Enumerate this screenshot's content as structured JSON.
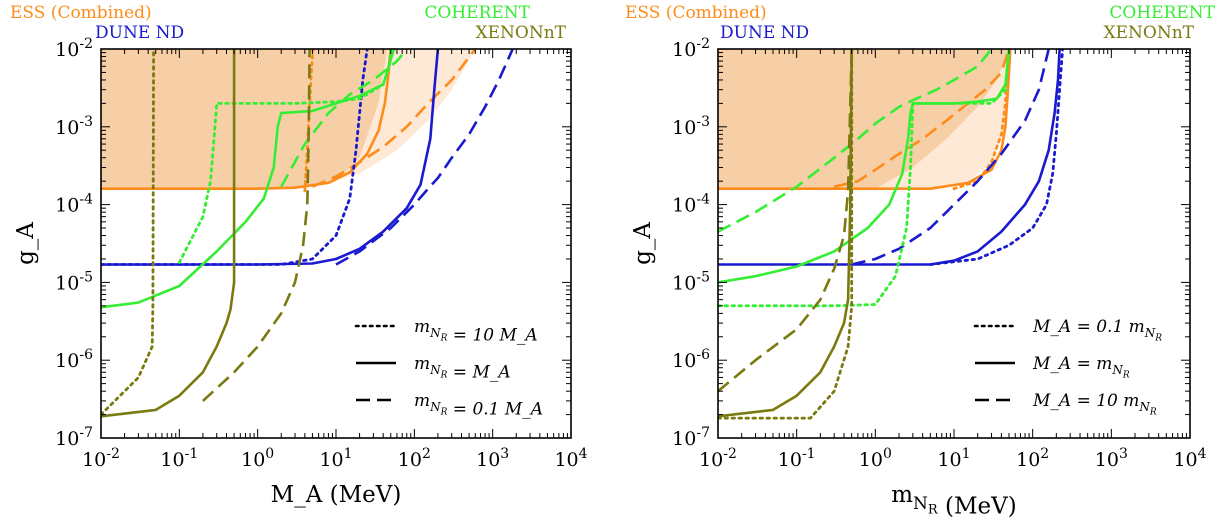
{
  "colors": {
    "ess": "#ff8c1a",
    "ess_fill": "#f7cfa6",
    "ess_fill_light": "#fde9d6",
    "dune": "#1a1ad0",
    "coherent": "#33ee33",
    "xenon": "#7a7a10"
  },
  "chart_data": [
    {
      "type": "line",
      "xscale": "log",
      "yscale": "log",
      "xlim": [
        0.01,
        10000
      ],
      "ylim": [
        1e-07,
        0.01
      ],
      "xlabel": "M_A (MeV)",
      "ylabel": "g_A",
      "x_ticks": [
        "10^{-2}",
        "10^{-1}",
        "10^{0}",
        "10^{1}",
        "10^{2}",
        "10^{3}",
        "10^{4}"
      ],
      "y_ticks": [
        "10^{-7}",
        "10^{-6}",
        "10^{-5}",
        "10^{-4}",
        "10^{-3}",
        "10^{-2}"
      ],
      "experiment_labels": [
        {
          "text": "ESS (Combined)",
          "color_key": "ess"
        },
        {
          "text": "COHERENT",
          "color_key": "coherent"
        },
        {
          "text": "DUNE ND",
          "color_key": "dune"
        },
        {
          "text": "XENONnT",
          "color_key": "xenon"
        }
      ],
      "legend": {
        "position": "lower-right",
        "entries": [
          {
            "style": "dotted",
            "label": "m_{N_R} = 10 M_A"
          },
          {
            "style": "solid",
            "label": "m_{N_R} = M_A"
          },
          {
            "style": "dashed",
            "label": "m_{N_R} = 0.1 M_A"
          }
        ]
      },
      "shaded_regions": [
        {
          "name": "ESS (Combined)",
          "color_key": "ess_fill",
          "points": [
            [
              0.01,
              0.00016
            ],
            [
              1,
              0.00016
            ],
            [
              2,
              0.00016
            ],
            [
              10,
              0.0002
            ],
            [
              20,
              0.0004
            ],
            [
              35,
              0.002
            ],
            [
              45,
              0.01
            ],
            [
              0.01,
              0.01
            ]
          ]
        },
        {
          "name": "ESS (Combined)",
          "color_key": "ess_fill_light",
          "points": [
            [
              45,
              0.01
            ],
            [
              35,
              0.002
            ],
            [
              20,
              0.0004
            ],
            [
              10,
              0.0002
            ],
            [
              4,
              0.00016
            ],
            [
              20,
              0.00025
            ],
            [
              60,
              0.0005
            ],
            [
              150,
              0.0012
            ],
            [
              300,
              0.003
            ],
            [
              600,
              0.01
            ]
          ]
        }
      ],
      "series": [
        {
          "name": "ESS (Combined)",
          "color_key": "ess",
          "style": "solid",
          "x": [
            0.01,
            1,
            3,
            8,
            15,
            25,
            35,
            42,
            45,
            47,
            48,
            50
          ],
          "y": [
            0.00016,
            0.00016,
            0.000165,
            0.00019,
            0.00026,
            0.00045,
            0.0009,
            0.002,
            0.0035,
            0.005,
            0.007,
            0.01
          ]
        },
        {
          "name": "ESS (Combined)",
          "color_key": "ess",
          "style": "dashed",
          "x": [
            5,
            10,
            20,
            40,
            80,
            150,
            300,
            600
          ],
          "y": [
            0.00017,
            0.00023,
            0.00035,
            0.00055,
            0.001,
            0.002,
            0.004,
            0.01
          ]
        },
        {
          "name": "ESS (Combined)",
          "color_key": "ess",
          "style": "dotted",
          "x": [
            4,
            4.3,
            4.6,
            4.9,
            5.1
          ],
          "y": [
            0.00015,
            0.0005,
            0.002,
            0.006,
            0.01
          ]
        },
        {
          "name": "DUNE ND",
          "color_key": "dune",
          "style": "solid",
          "x": [
            0.01,
            1,
            5,
            10,
            20,
            40,
            80,
            120,
            160,
            180,
            200
          ],
          "y": [
            1.7e-05,
            1.7e-05,
            1.75e-05,
            2e-05,
            2.7e-05,
            4.5e-05,
            9e-05,
            0.00018,
            0.0007,
            0.003,
            0.01
          ]
        },
        {
          "name": "DUNE ND",
          "color_key": "dune",
          "style": "dotted",
          "x": [
            0.01,
            2,
            5,
            10,
            15,
            18,
            20,
            22,
            25
          ],
          "y": [
            1.7e-05,
            1.7e-05,
            2e-05,
            4e-05,
            0.00012,
            0.0005,
            0.0015,
            0.004,
            0.01
          ]
        },
        {
          "name": "DUNE ND",
          "color_key": "dune",
          "style": "dashed",
          "x": [
            10,
            20,
            50,
            100,
            150,
            200,
            300,
            500,
            800,
            1200,
            1800
          ],
          "y": [
            1.7e-05,
            2.5e-05,
            5e-05,
            0.0001,
            0.00016,
            0.00022,
            0.0004,
            0.0008,
            0.0018,
            0.004,
            0.01
          ]
        },
        {
          "name": "COHERENT",
          "color_key": "coherent",
          "style": "solid",
          "x": [
            0.01,
            0.03,
            0.1,
            0.3,
            0.7,
            1.2,
            1.6,
            1.8,
            2,
            5,
            10,
            20,
            40,
            55
          ],
          "y": [
            4.8e-06,
            5.5e-06,
            9e-06,
            2.5e-05,
            6e-05,
            0.00012,
            0.0003,
            0.001,
            0.0015,
            0.0016,
            0.002,
            0.0025,
            0.0035,
            0.01
          ]
        },
        {
          "name": "COHERENT",
          "color_key": "coherent",
          "style": "dotted",
          "x": [
            0.1,
            0.2,
            0.25,
            0.28,
            0.3,
            1,
            3,
            10,
            20,
            40,
            48,
            50
          ],
          "y": [
            1.8e-05,
            7e-05,
            0.0002,
            0.0008,
            0.002,
            0.002,
            0.002,
            0.0021,
            0.0023,
            0.0035,
            0.006,
            0.01
          ]
        },
        {
          "name": "COHERENT",
          "color_key": "coherent",
          "style": "dashed",
          "x": [
            2,
            4,
            8,
            15,
            30,
            60,
            80
          ],
          "y": [
            0.00017,
            0.0006,
            0.0015,
            0.0026,
            0.004,
            0.007,
            0.01
          ]
        },
        {
          "name": "XENONnT",
          "color_key": "xenon",
          "style": "solid",
          "x": [
            0.01,
            0.05,
            0.1,
            0.2,
            0.3,
            0.4,
            0.45,
            0.5,
            0.5
          ],
          "y": [
            1.9e-07,
            2.3e-07,
            3.5e-07,
            7e-07,
            1.5e-06,
            3e-06,
            4.5e-06,
            1e-05,
            0.01
          ]
        },
        {
          "name": "XENONnT",
          "color_key": "xenon",
          "style": "dotted",
          "x": [
            0.01,
            0.03,
            0.045,
            0.046,
            0.047
          ],
          "y": [
            2e-07,
            6e-07,
            1.5e-06,
            5e-06,
            0.01
          ]
        },
        {
          "name": "XENONnT",
          "color_key": "xenon",
          "style": "dashed",
          "x": [
            0.2,
            0.5,
            1,
            2,
            3,
            3.8,
            4.3,
            4.5,
            4.6
          ],
          "y": [
            3e-07,
            7e-07,
            1.5e-06,
            4e-06,
            1e-05,
            3e-05,
            0.0001,
            0.001,
            0.01
          ]
        }
      ]
    },
    {
      "type": "line",
      "xscale": "log",
      "yscale": "log",
      "xlim": [
        0.01,
        10000
      ],
      "ylim": [
        1e-07,
        0.01
      ],
      "xlabel": "m_{N_R} (MeV)",
      "ylabel": "g_A",
      "x_ticks": [
        "10^{-2}",
        "10^{-1}",
        "10^{0}",
        "10^{1}",
        "10^{2}",
        "10^{3}",
        "10^{4}"
      ],
      "y_ticks": [
        "10^{-7}",
        "10^{-6}",
        "10^{-5}",
        "10^{-4}",
        "10^{-3}",
        "10^{-2}"
      ],
      "experiment_labels": [
        {
          "text": "ESS (Combined)",
          "color_key": "ess"
        },
        {
          "text": "COHERENT",
          "color_key": "coherent"
        },
        {
          "text": "DUNE ND",
          "color_key": "dune"
        },
        {
          "text": "XENONnT",
          "color_key": "xenon"
        }
      ],
      "legend": {
        "position": "lower-right",
        "entries": [
          {
            "style": "dotted",
            "label": "M_A = 0.1 m_{N_R}"
          },
          {
            "style": "solid",
            "label": "M_A = m_{N_R}"
          },
          {
            "style": "dashed",
            "label": "M_A = 10 m_{N_R}"
          }
        ]
      },
      "shaded_regions": [
        {
          "name": "ESS (Combined)",
          "color_key": "ess_fill",
          "points": [
            [
              0.01,
              0.00016
            ],
            [
              5,
              0.00016
            ],
            [
              15,
              0.0002
            ],
            [
              30,
              0.00035
            ],
            [
              45,
              0.001
            ],
            [
              50,
              0.003
            ],
            [
              52,
              0.01
            ],
            [
              0.01,
              0.01
            ]
          ]
        },
        {
          "name": "ESS (Combined)",
          "color_key": "ess_fill_light",
          "points": [
            [
              52,
              0.01
            ],
            [
              50,
              0.003
            ],
            [
              45,
              0.001
            ],
            [
              30,
              0.00035
            ],
            [
              15,
              0.0002
            ],
            [
              5,
              0.00016
            ],
            [
              1,
              0.00016
            ],
            [
              3,
              0.0003
            ],
            [
              8,
              0.0007
            ],
            [
              20,
              0.0018
            ],
            [
              35,
              0.004
            ],
            [
              50,
              0.01
            ]
          ]
        }
      ],
      "series": [
        {
          "name": "ESS (Combined)",
          "color_key": "ess",
          "style": "solid",
          "x": [
            0.01,
            5,
            15,
            30,
            40,
            45,
            48,
            50,
            52
          ],
          "y": [
            0.00016,
            0.00016,
            0.00019,
            0.00028,
            0.0005,
            0.001,
            0.0025,
            0.005,
            0.01
          ]
        },
        {
          "name": "ESS (Combined)",
          "color_key": "ess",
          "style": "dashed",
          "x": [
            0.3,
            0.6,
            1,
            2,
            4,
            8,
            15,
            25,
            40,
            50
          ],
          "y": [
            0.00017,
            0.0002,
            0.00028,
            0.00045,
            0.0007,
            0.0012,
            0.002,
            0.003,
            0.005,
            0.01
          ]
        },
        {
          "name": "ESS (Combined)",
          "color_key": "ess",
          "style": "dotted",
          "x": [
            10,
            20,
            30,
            40,
            45,
            50
          ],
          "y": [
            0.00016,
            0.0002,
            0.00035,
            0.0008,
            0.002,
            0.01
          ]
        },
        {
          "name": "DUNE ND",
          "color_key": "dune",
          "style": "solid",
          "x": [
            0.01,
            5,
            10,
            20,
            40,
            80,
            120,
            160,
            190,
            210,
            220
          ],
          "y": [
            1.7e-05,
            1.7e-05,
            1.9e-05,
            2.5e-05,
            4.5e-05,
            0.0001,
            0.0002,
            0.0005,
            0.0015,
            0.004,
            0.01
          ]
        },
        {
          "name": "DUNE ND",
          "color_key": "dune",
          "style": "dotted",
          "x": [
            5,
            20,
            50,
            100,
            150,
            180,
            200,
            220,
            240
          ],
          "y": [
            1.7e-05,
            2e-05,
            3e-05,
            5e-05,
            0.0001,
            0.00025,
            0.0008,
            0.003,
            0.01
          ]
        },
        {
          "name": "DUNE ND",
          "color_key": "dune",
          "style": "dashed",
          "x": [
            0.5,
            1,
            2,
            5,
            10,
            20,
            40,
            80,
            120,
            160
          ],
          "y": [
            1.7e-05,
            2e-05,
            2.7e-05,
            5e-05,
            0.0001,
            0.0002,
            0.00045,
            0.0012,
            0.003,
            0.01
          ]
        },
        {
          "name": "COHERENT",
          "color_key": "coherent",
          "style": "solid",
          "x": [
            0.01,
            0.03,
            0.1,
            0.3,
            0.8,
            1.5,
            2.2,
            2.6,
            2.8,
            3,
            10,
            20,
            35,
            45,
            50
          ],
          "y": [
            1e-05,
            1.2e-05,
            1.6e-05,
            2.5e-05,
            5e-05,
            0.0001,
            0.00025,
            0.0007,
            0.0015,
            0.002,
            0.002,
            0.0021,
            0.0023,
            0.0035,
            0.01
          ]
        },
        {
          "name": "COHERENT",
          "color_key": "coherent",
          "style": "dotted",
          "x": [
            0.01,
            0.3,
            1,
            1.8,
            2.5,
            2.8,
            3,
            10,
            30,
            45,
            50
          ],
          "y": [
            5e-06,
            5e-06,
            5.2e-06,
            1.2e-05,
            5e-05,
            0.0003,
            0.002,
            0.002,
            0.002,
            0.003,
            0.01
          ]
        },
        {
          "name": "COHERENT",
          "color_key": "coherent",
          "style": "dashed",
          "x": [
            0.01,
            0.03,
            0.1,
            0.3,
            0.6,
            1,
            2,
            3,
            6,
            10,
            20,
            30
          ],
          "y": [
            4.5e-05,
            8e-05,
            0.00017,
            0.0004,
            0.0007,
            0.0011,
            0.0018,
            0.0022,
            0.003,
            0.004,
            0.006,
            0.01
          ]
        },
        {
          "name": "XENONnT",
          "color_key": "xenon",
          "style": "solid",
          "x": [
            0.01,
            0.05,
            0.1,
            0.2,
            0.3,
            0.4,
            0.45,
            0.48,
            0.5
          ],
          "y": [
            1.9e-07,
            2.3e-07,
            3.5e-07,
            7e-07,
            1.5e-06,
            3e-06,
            6e-06,
            0.0001,
            0.01
          ]
        },
        {
          "name": "XENONnT",
          "color_key": "xenon",
          "style": "dotted",
          "x": [
            0.01,
            0.1,
            0.15,
            0.3,
            0.45,
            0.5,
            0.5
          ],
          "y": [
            1.8e-07,
            1.8e-07,
            1.8e-07,
            4e-07,
            1.5e-06,
            5e-06,
            0.01
          ]
        },
        {
          "name": "XENONnT",
          "color_key": "xenon",
          "style": "dashed",
          "x": [
            0.01,
            0.03,
            0.1,
            0.2,
            0.3,
            0.4,
            0.45,
            0.5
          ],
          "y": [
            4e-07,
            1e-06,
            2.5e-06,
            6e-06,
            1.5e-05,
            4e-05,
            0.00015,
            0.01
          ]
        }
      ]
    }
  ]
}
